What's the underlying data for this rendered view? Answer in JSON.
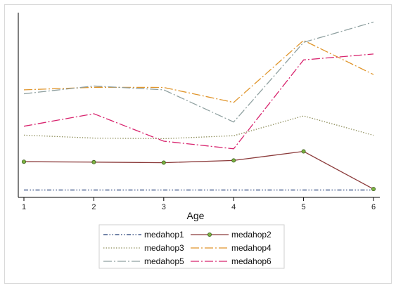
{
  "chart_data": {
    "type": "line",
    "title": "",
    "xlabel": "Age",
    "ylabel": "",
    "x": [
      1,
      2,
      3,
      4,
      5,
      6
    ],
    "ylim": [
      0,
      1
    ],
    "grid": false,
    "legend_position": "bottom",
    "series": [
      {
        "name": "medahop1",
        "values": [
          0.04,
          0.04,
          0.04,
          0.04,
          0.04,
          0.04
        ],
        "color": "#1f3b73",
        "dash": "dash-dot-dot",
        "marker": "none"
      },
      {
        "name": "medahop2",
        "values": [
          0.193,
          0.191,
          0.188,
          0.2,
          0.249,
          0.045
        ],
        "color": "#8b3a3a",
        "dash": "solid",
        "marker": "circle",
        "marker_color": "#7cb342"
      },
      {
        "name": "medahop3",
        "values": [
          0.337,
          0.321,
          0.318,
          0.334,
          0.441,
          0.336
        ],
        "color": "#8a8a55",
        "dash": "dotted",
        "marker": "none"
      },
      {
        "name": "medahop4",
        "values": [
          0.582,
          0.596,
          0.595,
          0.514,
          0.85,
          0.665
        ],
        "color": "#e0952b",
        "dash": "long-dash-dot",
        "marker": "none"
      },
      {
        "name": "medahop5",
        "values": [
          0.561,
          0.603,
          0.582,
          0.408,
          0.839,
          0.949
        ],
        "color": "#8fa0a0",
        "dash": "long-dash-dot",
        "marker": "none"
      },
      {
        "name": "medahop6",
        "values": [
          0.385,
          0.453,
          0.304,
          0.263,
          0.744,
          0.776
        ],
        "color": "#d8246e",
        "dash": "long-dash-dot",
        "marker": "none"
      }
    ]
  }
}
